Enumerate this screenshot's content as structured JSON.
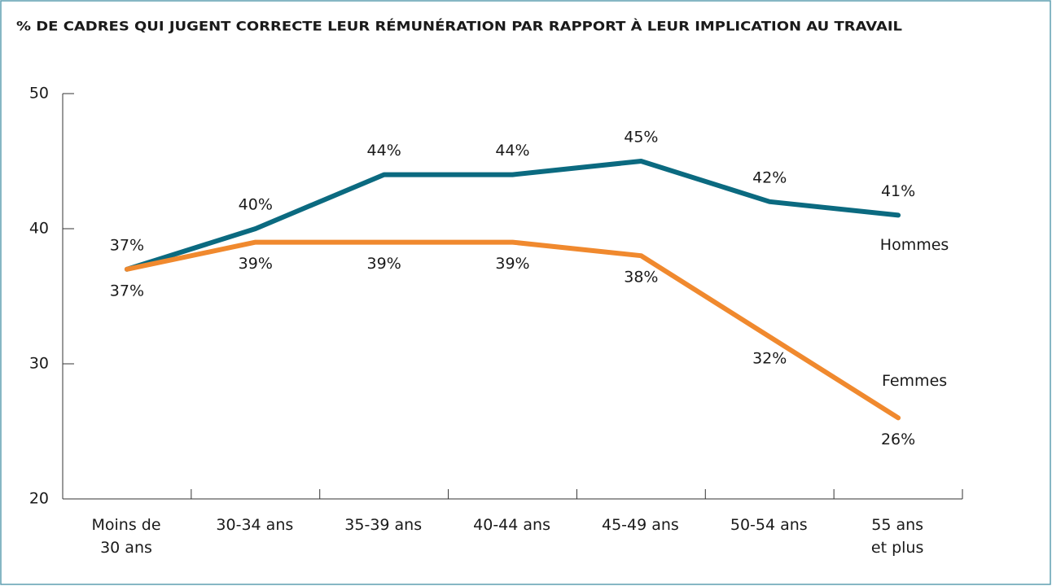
{
  "chart_data": {
    "type": "line",
    "title": "% DE CADRES QUI JUGENT CORRECTE LEUR RÉMUNÉRATION PAR RAPPORT À LEUR IMPLICATION AU TRAVAIL",
    "categories": [
      "Moins de\n30 ans",
      "30-34 ans",
      "35-39 ans",
      "40-44 ans",
      "45-49 ans",
      "50-54 ans",
      "55 ans\net plus"
    ],
    "series": [
      {
        "name": "Hommes",
        "color": "#0b6a80",
        "values": [
          37,
          40,
          44,
          44,
          45,
          42,
          41
        ],
        "value_labels": [
          "37%",
          "40%",
          "44%",
          "44%",
          "45%",
          "42%",
          "41%"
        ]
      },
      {
        "name": "Femmes",
        "color": "#f0892e",
        "values": [
          37,
          39,
          39,
          39,
          38,
          32,
          26
        ],
        "value_labels": [
          "37%",
          "39%",
          "39%",
          "39%",
          "38%",
          "32%",
          "26%"
        ]
      }
    ],
    "ylim": [
      20,
      50
    ],
    "yticks": [
      20,
      30,
      40,
      50
    ]
  }
}
